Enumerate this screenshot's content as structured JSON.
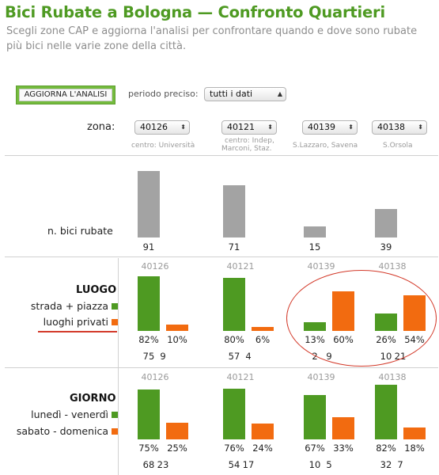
{
  "title": "Bici Rubate a Bologna — Confronto Quartieri",
  "subtitle": "Scegli zone CAP e aggiorna l'analisi per confrontare quando e dove sono rubate più bici nelle varie zone della città.",
  "controls": {
    "update_button": "AGGIORNA L'ANALISI",
    "period_label": "periodo preciso:",
    "period_value": "tutti i dati",
    "zone_label": "zona:"
  },
  "zones": [
    {
      "cap": "40126",
      "desc": [
        "centro: Università"
      ]
    },
    {
      "cap": "40121",
      "desc": [
        "centro: Indep,",
        "Marconi, Staz."
      ]
    },
    {
      "cap": "40139",
      "desc": [
        "S.Lazzaro, Savena"
      ]
    },
    {
      "cap": "40138",
      "desc": [
        "S.Orsola"
      ]
    }
  ],
  "colors": {
    "title": "#4e9a22",
    "green": "#4e9a22",
    "orange": "#f26b10",
    "gray": "#a3a3a3",
    "highlight": "#d33a2a"
  },
  "section_total": {
    "label": "n. bici rubate",
    "chart_data": {
      "type": "bar",
      "categories": [
        "40126",
        "40121",
        "40139",
        "40138"
      ],
      "values": [
        91,
        71,
        15,
        39
      ]
    }
  },
  "section_luogo": {
    "heading": "LUOGO",
    "legend": [
      "strada + piazza",
      "luoghi privati"
    ],
    "chart_data": {
      "type": "bar",
      "categories": [
        "40126",
        "40121",
        "40139",
        "40138"
      ],
      "series": [
        {
          "name": "strada + piazza",
          "percent": [
            "82%",
            "80%",
            "13%",
            "26%"
          ],
          "values": [
            75,
            57,
            2,
            10
          ],
          "share": [
            82,
            80,
            13,
            26
          ]
        },
        {
          "name": "luoghi privati",
          "percent": [
            "10%",
            "6%",
            "60%",
            "54%"
          ],
          "values": [
            9,
            4,
            9,
            21
          ],
          "share": [
            10,
            6,
            60,
            54
          ]
        }
      ]
    }
  },
  "section_giorno": {
    "heading": "GIORNO",
    "legend": [
      "lunedì - venerdì",
      "sabato - domenica"
    ],
    "chart_data": {
      "type": "bar",
      "categories": [
        "40126",
        "40121",
        "40139",
        "40138"
      ],
      "series": [
        {
          "name": "lunedì - venerdì",
          "percent": [
            "75%",
            "76%",
            "67%",
            "82%"
          ],
          "values": [
            68,
            54,
            10,
            32
          ],
          "share": [
            75,
            76,
            67,
            82
          ]
        },
        {
          "name": "sabato - domenica",
          "percent": [
            "25%",
            "24%",
            "33%",
            "18%"
          ],
          "values": [
            23,
            17,
            5,
            7
          ],
          "share": [
            25,
            24,
            33,
            18
          ]
        }
      ]
    }
  }
}
